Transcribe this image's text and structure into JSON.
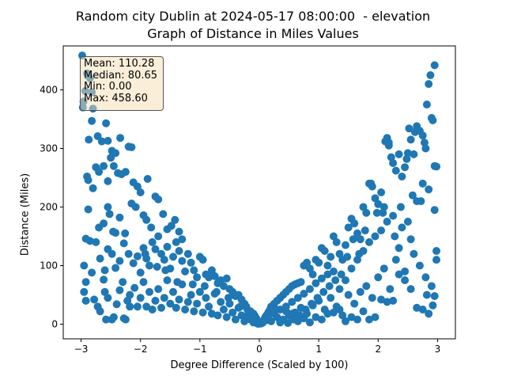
{
  "chart_data": {
    "type": "scatter",
    "title_line1": "Random city Dublin at 2024-05-17 08:00:00  - elevation",
    "title_line2": "Graph of Distance in Miles Values",
    "xlabel": "Degree Difference (Scaled by 100)",
    "ylabel": "Distance (Miles)",
    "xlim": [
      -3.3,
      3.3
    ],
    "ylim": [
      -25,
      475
    ],
    "xticks": [
      -3,
      -2,
      -1,
      0,
      1,
      2,
      3
    ],
    "yticks": [
      0,
      100,
      200,
      300,
      400
    ],
    "marker_color": "#1f77b4",
    "grid": false,
    "stats": {
      "mean": "Mean: 110.28",
      "median": "Median: 80.65",
      "min": "Min: 0.00",
      "max": "Max: 458.60"
    },
    "points": [
      [
        -2.98,
        458.6
      ],
      [
        -2.97,
        370
      ],
      [
        -2.96,
        380
      ],
      [
        -2.93,
        398
      ],
      [
        -2.9,
        428
      ],
      [
        -2.85,
        420
      ],
      [
        -2.82,
        396
      ],
      [
        -2.8,
        368
      ],
      [
        -2.87,
        315
      ],
      [
        -2.82,
        347
      ],
      [
        -2.72,
        321
      ],
      [
        -2.65,
        312
      ],
      [
        -2.58,
        343
      ],
      [
        -2.55,
        313
      ],
      [
        -2.48,
        296
      ],
      [
        -2.42,
        292
      ],
      [
        -2.34,
        318
      ],
      [
        -2.2,
        303
      ],
      [
        -2.15,
        302
      ],
      [
        -2.9,
        252
      ],
      [
        -2.88,
        246
      ],
      [
        -2.8,
        232
      ],
      [
        -2.75,
        268
      ],
      [
        -2.7,
        260
      ],
      [
        -2.62,
        270
      ],
      [
        -2.55,
        244
      ],
      [
        -2.5,
        284
      ],
      [
        -2.45,
        270
      ],
      [
        -2.38,
        258
      ],
      [
        -2.32,
        256
      ],
      [
        -2.25,
        260
      ],
      [
        -2.12,
        242
      ],
      [
        -2.05,
        235
      ],
      [
        -2.0,
        225
      ],
      [
        -1.88,
        248
      ],
      [
        -2.88,
        196
      ],
      [
        -2.7,
        165
      ],
      [
        -2.62,
        172
      ],
      [
        -2.55,
        200
      ],
      [
        -2.52,
        188
      ],
      [
        -2.46,
        158
      ],
      [
        -2.42,
        156
      ],
      [
        -2.35,
        182
      ],
      [
        -2.26,
        155
      ],
      [
        -2.15,
        206
      ],
      [
        -2.08,
        200
      ],
      [
        -1.95,
        186
      ],
      [
        -1.9,
        178
      ],
      [
        -1.82,
        165
      ],
      [
        -1.75,
        218
      ],
      [
        -1.7,
        213
      ],
      [
        -1.62,
        188
      ],
      [
        -1.55,
        162
      ],
      [
        -1.48,
        168
      ],
      [
        -1.42,
        178
      ],
      [
        -1.35,
        158
      ],
      [
        -1.3,
        145
      ],
      [
        -2.92,
        146
      ],
      [
        -2.85,
        142
      ],
      [
        -2.75,
        140
      ],
      [
        -2.68,
        112
      ],
      [
        -2.6,
        92
      ],
      [
        -2.55,
        128
      ],
      [
        -2.48,
        120
      ],
      [
        -2.42,
        96
      ],
      [
        -2.35,
        108
      ],
      [
        -2.28,
        138
      ],
      [
        -2.2,
        120
      ],
      [
        -2.12,
        104
      ],
      [
        -2.05,
        116
      ],
      [
        -2.0,
        88
      ],
      [
        -1.95,
        130
      ],
      [
        -1.9,
        112
      ],
      [
        -1.85,
        100
      ],
      [
        -1.8,
        140
      ],
      [
        -1.75,
        128
      ],
      [
        -1.7,
        150
      ],
      [
        -1.65,
        120
      ],
      [
        -1.6,
        110
      ],
      [
        -1.55,
        132
      ],
      [
        -1.5,
        95
      ],
      [
        -1.45,
        115
      ],
      [
        -1.4,
        140
      ],
      [
        -1.35,
        125
      ],
      [
        -1.3,
        108
      ],
      [
        -1.25,
        90
      ],
      [
        -1.2,
        120
      ],
      [
        -1.15,
        105
      ],
      [
        -1.1,
        92
      ],
      [
        -1.05,
        80
      ],
      [
        -1.0,
        115
      ],
      [
        -0.95,
        110
      ],
      [
        -0.9,
        85
      ],
      [
        -0.85,
        80
      ],
      [
        -0.8,
        92
      ],
      [
        -0.75,
        82
      ],
      [
        -0.7,
        70
      ],
      [
        -0.65,
        75
      ],
      [
        -0.6,
        65
      ],
      [
        -0.55,
        78
      ],
      [
        -0.5,
        60
      ],
      [
        -0.45,
        55
      ],
      [
        -0.4,
        48
      ],
      [
        -0.35,
        50
      ],
      [
        -0.3,
        42
      ],
      [
        -0.25,
        35
      ],
      [
        -0.22,
        30
      ],
      [
        -0.2,
        25
      ],
      [
        -0.15,
        22
      ],
      [
        -0.1,
        18
      ],
      [
        -0.08,
        15
      ],
      [
        -0.05,
        10
      ],
      [
        -0.03,
        5
      ],
      [
        -2.95,
        55
      ],
      [
        -2.92,
        40
      ],
      [
        -2.82,
        88
      ],
      [
        -2.78,
        42
      ],
      [
        -2.72,
        30
      ],
      [
        -2.68,
        22
      ],
      [
        -2.62,
        76
      ],
      [
        -2.6,
        55
      ],
      [
        -2.55,
        45
      ],
      [
        -2.48,
        8
      ],
      [
        -2.45,
        12
      ],
      [
        -2.4,
        34
      ],
      [
        -2.35,
        58
      ],
      [
        -2.3,
        72
      ],
      [
        -2.28,
        10
      ],
      [
        -2.22,
        40
      ],
      [
        -2.18,
        50
      ],
      [
        -2.1,
        62
      ],
      [
        -2.05,
        30
      ],
      [
        -2.0,
        45
      ],
      [
        -1.95,
        72
      ],
      [
        -1.9,
        30
      ],
      [
        -1.85,
        55
      ],
      [
        -1.8,
        25
      ],
      [
        -1.75,
        40
      ],
      [
        -1.7,
        60
      ],
      [
        -1.65,
        28
      ],
      [
        -1.6,
        45
      ],
      [
        -1.55,
        75
      ],
      [
        -1.5,
        35
      ],
      [
        -1.45,
        55
      ],
      [
        -1.4,
        28
      ],
      [
        -1.35,
        42
      ],
      [
        -1.3,
        68
      ],
      [
        -1.25,
        25
      ],
      [
        -1.2,
        38
      ],
      [
        -1.15,
        50
      ],
      [
        -1.1,
        22
      ],
      [
        -1.05,
        35
      ],
      [
        -1.0,
        55
      ],
      [
        -0.95,
        20
      ],
      [
        -0.9,
        45
      ],
      [
        -0.85,
        30
      ],
      [
        -0.8,
        18
      ],
      [
        -0.75,
        52
      ],
      [
        -0.7,
        15
      ],
      [
        -0.65,
        38
      ],
      [
        -0.6,
        25
      ],
      [
        -0.55,
        12
      ],
      [
        -0.5,
        35
      ],
      [
        -0.45,
        20
      ],
      [
        -0.4,
        8
      ],
      [
        -0.35,
        28
      ],
      [
        -0.3,
        15
      ],
      [
        -0.25,
        5
      ],
      [
        -0.2,
        12
      ],
      [
        -0.15,
        8
      ],
      [
        -0.1,
        3
      ],
      [
        -0.05,
        2
      ],
      [
        -0.02,
        0.5
      ],
      [
        -2.95,
        100
      ],
      [
        -2.92,
        72
      ],
      [
        -2.58,
        8
      ],
      [
        -2.25,
        8
      ],
      [
        -2.18,
        30
      ],
      [
        -1.92,
        120
      ],
      [
        -1.72,
        98
      ],
      [
        -1.58,
        92
      ],
      [
        -1.38,
        72
      ],
      [
        -1.12,
        68
      ],
      [
        -0.92,
        65
      ],
      [
        -0.72,
        55
      ],
      [
        -0.52,
        45
      ],
      [
        -0.32,
        30
      ],
      [
        -0.18,
        20
      ],
      [
        0.02,
        1
      ],
      [
        0.05,
        4
      ],
      [
        0.08,
        8
      ],
      [
        0.1,
        12
      ],
      [
        0.12,
        15
      ],
      [
        0.15,
        20
      ],
      [
        0.18,
        25
      ],
      [
        0.2,
        30
      ],
      [
        0.25,
        35
      ],
      [
        0.3,
        40
      ],
      [
        0.35,
        45
      ],
      [
        0.4,
        50
      ],
      [
        0.45,
        55
      ],
      [
        0.5,
        60
      ],
      [
        0.55,
        65
      ],
      [
        0.6,
        68
      ],
      [
        0.65,
        70
      ],
      [
        0.7,
        72
      ],
      [
        0.75,
        100
      ],
      [
        0.8,
        105
      ],
      [
        0.85,
        95
      ],
      [
        0.9,
        85
      ],
      [
        0.95,
        110
      ],
      [
        1.0,
        105
      ],
      [
        1.05,
        130
      ],
      [
        1.1,
        125
      ],
      [
        1.15,
        100
      ],
      [
        1.2,
        115
      ],
      [
        1.25,
        150
      ],
      [
        1.3,
        140
      ],
      [
        1.35,
        120
      ],
      [
        1.4,
        110
      ],
      [
        1.45,
        135
      ],
      [
        1.5,
        165
      ],
      [
        1.55,
        180
      ],
      [
        1.6,
        172
      ],
      [
        1.65,
        155
      ],
      [
        1.7,
        145
      ],
      [
        1.75,
        200
      ],
      [
        1.8,
        190
      ],
      [
        1.85,
        240
      ],
      [
        1.9,
        235
      ],
      [
        1.95,
        215
      ],
      [
        2.0,
        205
      ],
      [
        2.05,
        225
      ],
      [
        2.1,
        200
      ],
      [
        2.12,
        312
      ],
      [
        2.15,
        318
      ],
      [
        2.18,
        305
      ],
      [
        2.22,
        285
      ],
      [
        2.25,
        275
      ],
      [
        2.3,
        262
      ],
      [
        2.35,
        290
      ],
      [
        2.4,
        252
      ],
      [
        2.45,
        268
      ],
      [
        2.5,
        292
      ],
      [
        2.52,
        334
      ],
      [
        2.55,
        315
      ],
      [
        2.6,
        290
      ],
      [
        2.62,
        328
      ],
      [
        2.65,
        338
      ],
      [
        2.7,
        330
      ],
      [
        2.75,
        322
      ],
      [
        2.78,
        310
      ],
      [
        2.8,
        300
      ],
      [
        2.82,
        375
      ],
      [
        2.85,
        410
      ],
      [
        2.88,
        425
      ],
      [
        2.9,
        352
      ],
      [
        2.92,
        348
      ],
      [
        2.95,
        442
      ],
      [
        2.98,
        269
      ],
      [
        0.05,
        2
      ],
      [
        0.1,
        6
      ],
      [
        0.15,
        10
      ],
      [
        0.2,
        5
      ],
      [
        0.25,
        18
      ],
      [
        0.3,
        12
      ],
      [
        0.35,
        25
      ],
      [
        0.4,
        8
      ],
      [
        0.45,
        30
      ],
      [
        0.5,
        15
      ],
      [
        0.55,
        38
      ],
      [
        0.6,
        20
      ],
      [
        0.65,
        45
      ],
      [
        0.7,
        28
      ],
      [
        0.75,
        52
      ],
      [
        0.8,
        18
      ],
      [
        0.85,
        60
      ],
      [
        0.9,
        32
      ],
      [
        0.95,
        70
      ],
      [
        1.0,
        40
      ],
      [
        1.05,
        78
      ],
      [
        1.1,
        25
      ],
      [
        1.15,
        85
      ],
      [
        1.2,
        45
      ],
      [
        1.25,
        90
      ],
      [
        1.3,
        30
      ],
      [
        1.35,
        60
      ],
      [
        1.4,
        15
      ],
      [
        1.45,
        75
      ],
      [
        1.5,
        50
      ],
      [
        1.55,
        95
      ],
      [
        1.6,
        35
      ],
      [
        1.65,
        110
      ],
      [
        1.7,
        55
      ],
      [
        1.75,
        125
      ],
      [
        1.8,
        65
      ],
      [
        1.85,
        140
      ],
      [
        1.9,
        45
      ],
      [
        1.95,
        150
      ],
      [
        2.0,
        80
      ],
      [
        2.05,
        160
      ],
      [
        2.1,
        95
      ],
      [
        2.15,
        175
      ],
      [
        2.2,
        60
      ],
      [
        2.25,
        185
      ],
      [
        2.3,
        110
      ],
      [
        2.35,
        130
      ],
      [
        2.4,
        165
      ],
      [
        2.45,
        90
      ],
      [
        2.5,
        175
      ],
      [
        2.55,
        145
      ],
      [
        2.6,
        120
      ],
      [
        2.65,
        210
      ],
      [
        2.7,
        100
      ],
      [
        2.75,
        240
      ],
      [
        2.8,
        80
      ],
      [
        2.85,
        230
      ],
      [
        2.9,
        65
      ],
      [
        2.95,
        195
      ],
      [
        2.98,
        110
      ],
      [
        2.95,
        48
      ],
      [
        2.92,
        32
      ],
      [
        2.85,
        18
      ],
      [
        2.75,
        25
      ],
      [
        2.65,
        28
      ],
      [
        2.55,
        60
      ],
      [
        2.45,
        75
      ],
      [
        2.35,
        85
      ],
      [
        2.25,
        40
      ],
      [
        2.15,
        38
      ],
      [
        2.05,
        42
      ],
      [
        1.95,
        12
      ],
      [
        1.85,
        8
      ],
      [
        1.75,
        22
      ],
      [
        1.65,
        8
      ],
      [
        1.55,
        12
      ],
      [
        1.45,
        5
      ],
      [
        1.35,
        25
      ],
      [
        1.25,
        20
      ],
      [
        1.15,
        18
      ],
      [
        1.05,
        8
      ],
      [
        0.95,
        12
      ],
      [
        0.85,
        3
      ],
      [
        0.75,
        10
      ],
      [
        0.65,
        5
      ],
      [
        0.55,
        18
      ],
      [
        0.45,
        22
      ],
      [
        0.35,
        3
      ],
      [
        0.25,
        28
      ],
      [
        0.15,
        15
      ],
      [
        2.98,
        125
      ],
      [
        2.95,
        270
      ],
      [
        2.82,
        50
      ],
      [
        2.72,
        210
      ],
      [
        2.58,
        220
      ],
      [
        2.48,
        282
      ],
      [
        2.38,
        200
      ],
      [
        2.28,
        150
      ],
      [
        2.18,
        310
      ],
      [
        2.08,
        190
      ],
      [
        1.98,
        190
      ],
      [
        1.88,
        240
      ],
      [
        1.78,
        160
      ],
      [
        1.68,
        120
      ],
      [
        1.58,
        145
      ],
      [
        1.48,
        115
      ],
      [
        1.38,
        85
      ],
      [
        1.28,
        75
      ],
      [
        1.18,
        65
      ],
      [
        1.08,
        55
      ],
      [
        0.98,
        45
      ],
      [
        0.88,
        35
      ],
      [
        0.78,
        25
      ],
      [
        0.68,
        15
      ],
      [
        0.58,
        8
      ],
      [
        0.48,
        2
      ]
    ]
  }
}
